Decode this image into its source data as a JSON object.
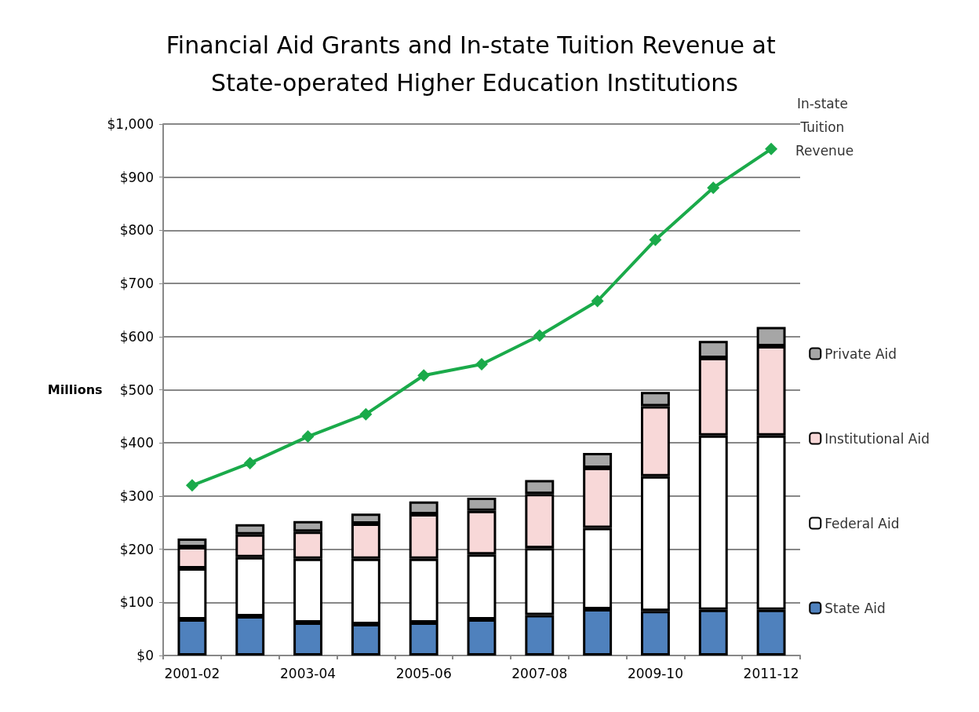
{
  "chart_data": {
    "type": "bar",
    "title": "Financial Aid Grants and In-state Tuition Revenue at State-operated Higher Education Institutions",
    "ylabel": "Millions",
    "categories": [
      "2001-02",
      null,
      "2003-04",
      null,
      "2005-06",
      null,
      "2007-08",
      null,
      "2009-10",
      null,
      "2011-12"
    ],
    "stacked": true,
    "series": [
      {
        "name": "State Aid",
        "color": "#4f81bd",
        "values": [
          68,
          74,
          62,
          59,
          62,
          68,
          76,
          87,
          84,
          86,
          86
        ]
      },
      {
        "name": "Federal Aid",
        "color": "#ffffff",
        "values": [
          96,
          111,
          120,
          123,
          120,
          122,
          126,
          153,
          253,
          328,
          328
        ]
      },
      {
        "name": "Institutional Aid",
        "color": "#f8d8d8",
        "values": [
          40,
          43,
          51,
          66,
          84,
          82,
          102,
          113,
          132,
          146,
          168
        ]
      },
      {
        "name": "Private Aid",
        "color": "#a6a6a6",
        "values": [
          16,
          19,
          20,
          19,
          24,
          25,
          26,
          28,
          27,
          32,
          36
        ]
      },
      {
        "name": "In-state Tuition Revenue",
        "type": "line",
        "color": "#1aaa4a",
        "marker": "diamond",
        "values": [
          320,
          362,
          412,
          454,
          527,
          548,
          602,
          667,
          782,
          880,
          953
        ]
      }
    ],
    "ylim": [
      0,
      1000
    ],
    "yticks": [
      {
        "value": 0,
        "label": "$0"
      },
      {
        "value": 100,
        "label": "$100"
      },
      {
        "value": 200,
        "label": "$200"
      },
      {
        "value": 300,
        "label": "$300"
      },
      {
        "value": 400,
        "label": "$400"
      },
      {
        "value": 500,
        "label": "$500"
      },
      {
        "value": 600,
        "label": "$600"
      },
      {
        "value": 700,
        "label": "$700"
      },
      {
        "value": 800,
        "label": "$800"
      },
      {
        "value": 900,
        "label": "$900"
      },
      {
        "value": 1000,
        "label": "$1,000"
      }
    ],
    "grid": "y",
    "legend": "right"
  }
}
